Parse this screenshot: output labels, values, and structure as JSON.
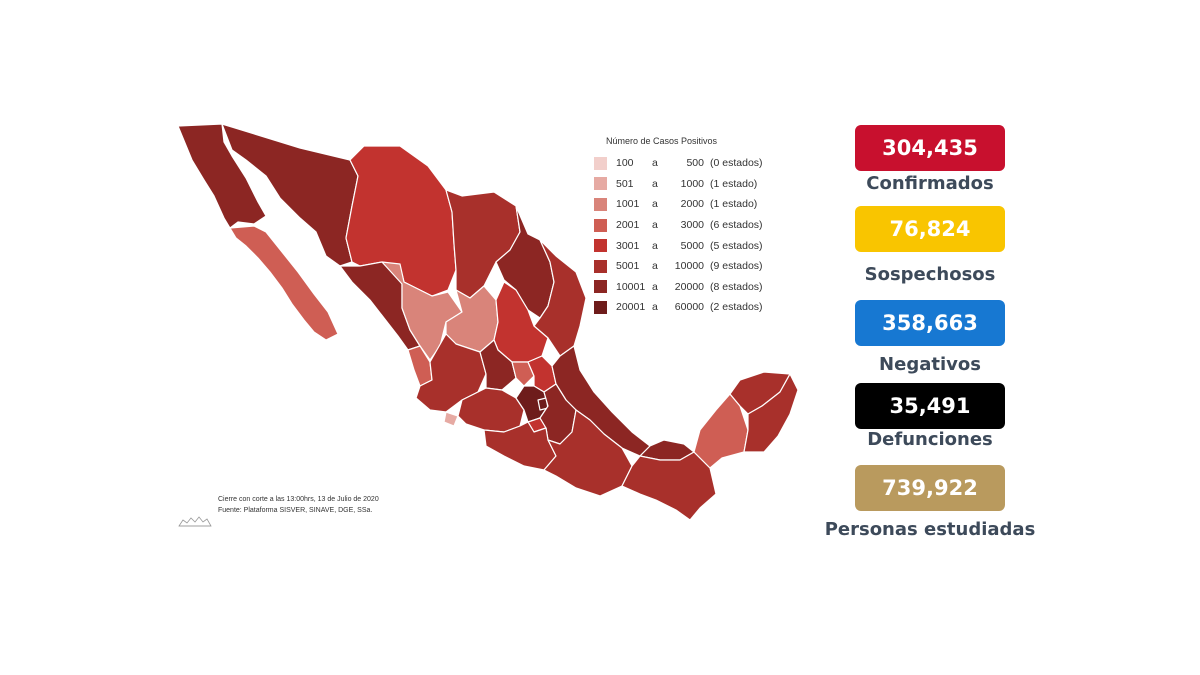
{
  "map": {
    "legend_title": "Número de Casos Positivos",
    "legend_connector": "a",
    "legend": [
      {
        "min": "100",
        "max": "500",
        "count": "(0 estados)",
        "color": "#f2cfcb"
      },
      {
        "min": "501",
        "max": "1000",
        "count": "(1 estado)",
        "color": "#e6aaa3"
      },
      {
        "min": "1001",
        "max": "2000",
        "count": "(1 estado)",
        "color": "#d9847a"
      },
      {
        "min": "2001",
        "max": "3000",
        "count": "(6 estados)",
        "color": "#cf5e54"
      },
      {
        "min": "3001",
        "max": "5000",
        "count": "(5 estados)",
        "color": "#c2332f"
      },
      {
        "min": "5001",
        "max": "10000",
        "count": "(9 estados)",
        "color": "#a8302b"
      },
      {
        "min": "10001",
        "max": "20000",
        "count": "(8 estados)",
        "color": "#8c2623"
      },
      {
        "min": "20001",
        "max": "60000",
        "count": "(2 estados)",
        "color": "#6e1c1b"
      }
    ],
    "footnote_cutoff": "Cierre con corte a las 13:00hrs, 13 de Julio de 2020",
    "footnote_source": "Fuente: Plataforma SISVER, SINAVE, DGE, SSa."
  },
  "stats": [
    {
      "value": "304,435",
      "label": "Confirmados",
      "color": "#c8102e"
    },
    {
      "value": "76,824",
      "label": "Sospechosos",
      "color": "#f9c500"
    },
    {
      "value": "358,663",
      "label": "Negativos",
      "color": "#1778d2"
    },
    {
      "value": "35,491",
      "label": "Defunciones",
      "color": "#000000"
    },
    {
      "value": "739,922",
      "label": "Personas estudiadas",
      "color": "#b99a5e"
    }
  ]
}
